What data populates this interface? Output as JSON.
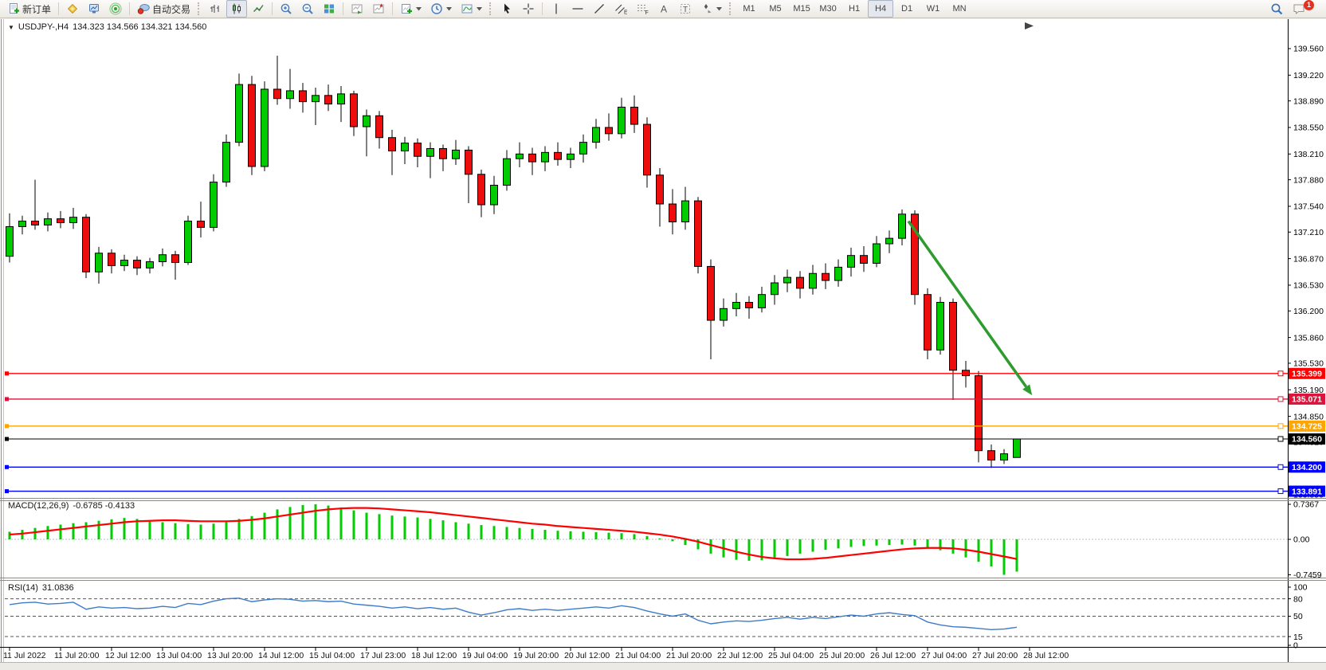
{
  "toolbar": {
    "new_order_label": "新订单",
    "autotrading_label": "自动交易",
    "timeframes": [
      "M1",
      "M5",
      "M15",
      "M30",
      "H1",
      "H4",
      "D1",
      "W1",
      "MN"
    ],
    "active_timeframe": "H4",
    "notification_badge": "1",
    "tool_letters": {
      "text": "A",
      "label": "T",
      "channel": "E",
      "fib": "F"
    }
  },
  "chart": {
    "collapse_glyph": "▼",
    "title_symbol": "USDJPY-,H4",
    "title_ohlc": "134.323 134.566 134.321 134.560"
  },
  "chart_data": {
    "type": "candlestick",
    "symbol": "USDJPY-",
    "timeframe": "H4",
    "ohlc_display": {
      "open": "134.323",
      "high": "134.566",
      "low": "134.321",
      "close": "134.560"
    },
    "price_axis_ticks": [
      "139.560",
      "139.220",
      "138.890",
      "138.550",
      "138.210",
      "137.880",
      "137.540",
      "137.210",
      "136.870",
      "136.530",
      "136.200",
      "135.860",
      "135.530",
      "135.190",
      "134.850",
      "134.520",
      "134.180",
      "133.850"
    ],
    "x_labels": [
      "11 Jul 2022",
      "11 Jul 20:00",
      "12 Jul 12:00",
      "13 Jul 04:00",
      "13 Jul 20:00",
      "14 Jul 12:00",
      "15 Jul 04:00",
      "17 Jul 23:00",
      "18 Jul 12:00",
      "19 Jul 04:00",
      "19 Jul 20:00",
      "20 Jul 12:00",
      "21 Jul 04:00",
      "21 Jul 20:00",
      "22 Jul 12:00",
      "25 Jul 04:00",
      "25 Jul 20:00",
      "26 Jul 12:00",
      "27 Jul 04:00",
      "27 Jul 20:00",
      "28 Jul 12:00"
    ],
    "colors": {
      "up": "#00CC00",
      "down": "#EE0C0C",
      "wick": "#000000"
    },
    "candles": [
      [
        136.9,
        137.45,
        136.82,
        137.28
      ],
      [
        137.28,
        137.42,
        137.18,
        137.35
      ],
      [
        137.35,
        137.88,
        137.24,
        137.3
      ],
      [
        137.3,
        137.46,
        137.22,
        137.38
      ],
      [
        137.38,
        137.48,
        137.26,
        137.33
      ],
      [
        137.33,
        137.52,
        137.25,
        137.4
      ],
      [
        137.4,
        137.44,
        136.62,
        136.7
      ],
      [
        136.7,
        137.02,
        136.55,
        136.94
      ],
      [
        136.94,
        136.99,
        136.68,
        136.78
      ],
      [
        136.78,
        136.92,
        136.71,
        136.85
      ],
      [
        136.85,
        136.9,
        136.66,
        136.75
      ],
      [
        136.75,
        136.88,
        136.68,
        136.83
      ],
      [
        136.83,
        137.0,
        136.77,
        136.92
      ],
      [
        136.92,
        136.97,
        136.6,
        136.82
      ],
      [
        136.82,
        137.42,
        136.79,
        137.35
      ],
      [
        137.35,
        137.6,
        137.14,
        137.27
      ],
      [
        137.27,
        137.95,
        137.22,
        137.85
      ],
      [
        137.85,
        138.46,
        137.79,
        138.36
      ],
      [
        138.36,
        139.24,
        138.31,
        139.1
      ],
      [
        139.1,
        139.21,
        137.94,
        138.05
      ],
      [
        138.05,
        139.14,
        137.99,
        139.04
      ],
      [
        139.04,
        139.47,
        138.84,
        138.92
      ],
      [
        138.92,
        139.3,
        138.79,
        139.02
      ],
      [
        139.02,
        139.12,
        138.74,
        138.88
      ],
      [
        138.88,
        139.06,
        138.58,
        138.96
      ],
      [
        138.96,
        139.1,
        138.76,
        138.85
      ],
      [
        138.85,
        139.08,
        138.62,
        138.98
      ],
      [
        138.98,
        139.02,
        138.44,
        138.56
      ],
      [
        138.56,
        138.78,
        138.18,
        138.7
      ],
      [
        138.7,
        138.76,
        138.28,
        138.42
      ],
      [
        138.42,
        138.52,
        137.94,
        138.25
      ],
      [
        138.25,
        138.43,
        138.08,
        138.35
      ],
      [
        138.35,
        138.41,
        138.04,
        138.18
      ],
      [
        138.18,
        138.36,
        137.9,
        138.28
      ],
      [
        138.28,
        138.33,
        137.99,
        138.15
      ],
      [
        138.15,
        138.39,
        138.07,
        138.26
      ],
      [
        138.26,
        138.31,
        137.58,
        137.95
      ],
      [
        137.95,
        138.01,
        137.4,
        137.56
      ],
      [
        137.56,
        137.93,
        137.44,
        137.81
      ],
      [
        137.81,
        138.26,
        137.74,
        138.15
      ],
      [
        138.15,
        138.36,
        138.04,
        138.21
      ],
      [
        138.21,
        138.29,
        137.94,
        138.11
      ],
      [
        138.11,
        138.31,
        137.99,
        138.23
      ],
      [
        138.23,
        138.36,
        138.06,
        138.14
      ],
      [
        138.14,
        138.29,
        138.03,
        138.21
      ],
      [
        138.21,
        138.46,
        138.1,
        138.36
      ],
      [
        138.36,
        138.66,
        138.28,
        138.55
      ],
      [
        138.55,
        138.73,
        138.38,
        138.47
      ],
      [
        138.47,
        138.93,
        138.41,
        138.81
      ],
      [
        138.81,
        138.96,
        138.48,
        138.59
      ],
      [
        138.59,
        138.68,
        137.78,
        137.94
      ],
      [
        137.94,
        138.03,
        137.28,
        137.57
      ],
      [
        137.57,
        137.76,
        137.18,
        137.34
      ],
      [
        137.34,
        137.79,
        137.24,
        137.61
      ],
      [
        137.61,
        137.66,
        136.68,
        136.77
      ],
      [
        136.77,
        136.86,
        135.58,
        136.08
      ],
      [
        136.08,
        136.36,
        136.0,
        136.23
      ],
      [
        136.23,
        136.43,
        136.13,
        136.31
      ],
      [
        136.31,
        136.39,
        136.1,
        136.24
      ],
      [
        136.24,
        136.51,
        136.18,
        136.41
      ],
      [
        136.41,
        136.66,
        136.28,
        136.56
      ],
      [
        136.56,
        136.73,
        136.44,
        136.63
      ],
      [
        136.63,
        136.71,
        136.36,
        136.49
      ],
      [
        136.49,
        136.79,
        136.41,
        136.68
      ],
      [
        136.68,
        136.81,
        136.48,
        136.59
      ],
      [
        136.59,
        136.86,
        136.51,
        136.76
      ],
      [
        136.76,
        137.01,
        136.64,
        136.91
      ],
      [
        136.91,
        137.03,
        136.7,
        136.81
      ],
      [
        136.81,
        137.16,
        136.76,
        137.06
      ],
      [
        137.06,
        137.23,
        136.94,
        137.13
      ],
      [
        137.13,
        137.5,
        137.04,
        137.44
      ],
      [
        137.44,
        137.49,
        136.28,
        136.41
      ],
      [
        136.41,
        136.49,
        135.58,
        135.7
      ],
      [
        135.7,
        136.38,
        135.64,
        136.31
      ],
      [
        136.31,
        136.36,
        135.06,
        135.44
      ],
      [
        135.44,
        135.56,
        135.22,
        135.37
      ],
      [
        135.37,
        135.43,
        134.26,
        134.41
      ],
      [
        134.41,
        134.49,
        134.19,
        134.29
      ],
      [
        134.29,
        134.43,
        134.24,
        134.37
      ],
      [
        134.323,
        134.566,
        134.321,
        134.56
      ]
    ],
    "hlines": [
      {
        "price": 135.399,
        "label": "135.399",
        "color": "#FF0000"
      },
      {
        "price": 135.071,
        "label": "135.071",
        "color": "#DC143C"
      },
      {
        "price": 134.725,
        "label": "134.725",
        "color": "#FFA500"
      },
      {
        "price": 134.56,
        "label": "134.560",
        "color": "#000000"
      },
      {
        "price": 134.2,
        "label": "134.200",
        "color": "#0000FF"
      },
      {
        "price": 133.891,
        "label": "133.891",
        "color": "#0000FF"
      }
    ],
    "arrow": {
      "from_index": 70.5,
      "from_price": 137.35,
      "to_index": 80.2,
      "to_price": 135.12,
      "color": "#2E9B2E"
    },
    "macd": {
      "label": "MACD(12,26,9)",
      "values_text": "-0.6785 -0.4133",
      "axis": [
        "0.7367",
        "0.00",
        "-0.7459"
      ],
      "hist_color": "#00CC00",
      "signal_color": "#FF0000",
      "hist": [
        0.16,
        0.2,
        0.24,
        0.28,
        0.31,
        0.34,
        0.36,
        0.39,
        0.42,
        0.45,
        0.43,
        0.39,
        0.36,
        0.34,
        0.32,
        0.31,
        0.33,
        0.37,
        0.43,
        0.49,
        0.56,
        0.63,
        0.68,
        0.72,
        0.7367,
        0.71,
        0.67,
        0.61,
        0.56,
        0.53,
        0.5,
        0.48,
        0.46,
        0.43,
        0.4,
        0.36,
        0.33,
        0.3,
        0.28,
        0.26,
        0.24,
        0.22,
        0.2,
        0.18,
        0.17,
        0.16,
        0.15,
        0.14,
        0.13,
        0.11,
        0.07,
        0.02,
        -0.04,
        -0.12,
        -0.21,
        -0.3,
        -0.38,
        -0.43,
        -0.45,
        -0.44,
        -0.4,
        -0.35,
        -0.3,
        -0.26,
        -0.22,
        -0.19,
        -0.16,
        -0.14,
        -0.13,
        -0.12,
        -0.11,
        -0.13,
        -0.17,
        -0.23,
        -0.3,
        -0.38,
        -0.47,
        -0.57,
        -0.7459,
        -0.6785
      ],
      "signal": [
        0.1,
        0.12,
        0.15,
        0.18,
        0.21,
        0.24,
        0.27,
        0.3,
        0.33,
        0.36,
        0.38,
        0.39,
        0.4,
        0.4,
        0.39,
        0.38,
        0.38,
        0.38,
        0.39,
        0.41,
        0.44,
        0.48,
        0.52,
        0.56,
        0.6,
        0.63,
        0.65,
        0.66,
        0.66,
        0.65,
        0.63,
        0.61,
        0.59,
        0.57,
        0.54,
        0.51,
        0.48,
        0.45,
        0.42,
        0.39,
        0.36,
        0.33,
        0.31,
        0.28,
        0.26,
        0.24,
        0.22,
        0.2,
        0.18,
        0.16,
        0.13,
        0.1,
        0.06,
        0.01,
        -0.05,
        -0.12,
        -0.19,
        -0.26,
        -0.32,
        -0.37,
        -0.4,
        -0.42,
        -0.42,
        -0.41,
        -0.39,
        -0.36,
        -0.33,
        -0.3,
        -0.27,
        -0.24,
        -0.21,
        -0.19,
        -0.18,
        -0.18,
        -0.19,
        -0.22,
        -0.26,
        -0.31,
        -0.36,
        -0.4133
      ]
    },
    "rsi": {
      "label": "RSI(14)",
      "value_text": "31.0836",
      "levels": [
        100,
        80,
        50,
        15,
        0
      ],
      "dashed_levels": [
        80,
        50,
        15
      ],
      "color": "#3E7BC8",
      "values": [
        70,
        73,
        74,
        71,
        72,
        74,
        62,
        66,
        64,
        65,
        63,
        64,
        67,
        65,
        72,
        70,
        76,
        80,
        81,
        75,
        78,
        80,
        79,
        76,
        77,
        75,
        76,
        71,
        69,
        67,
        64,
        66,
        63,
        65,
        62,
        64,
        57,
        52,
        56,
        61,
        63,
        60,
        62,
        60,
        62,
        64,
        66,
        64,
        68,
        65,
        59,
        54,
        50,
        54,
        43,
        37,
        40,
        42,
        41,
        43,
        46,
        48,
        45,
        48,
        46,
        49,
        52,
        50,
        54,
        56,
        53,
        51,
        40,
        35,
        32,
        31,
        29,
        27,
        28,
        31.08
      ]
    }
  }
}
